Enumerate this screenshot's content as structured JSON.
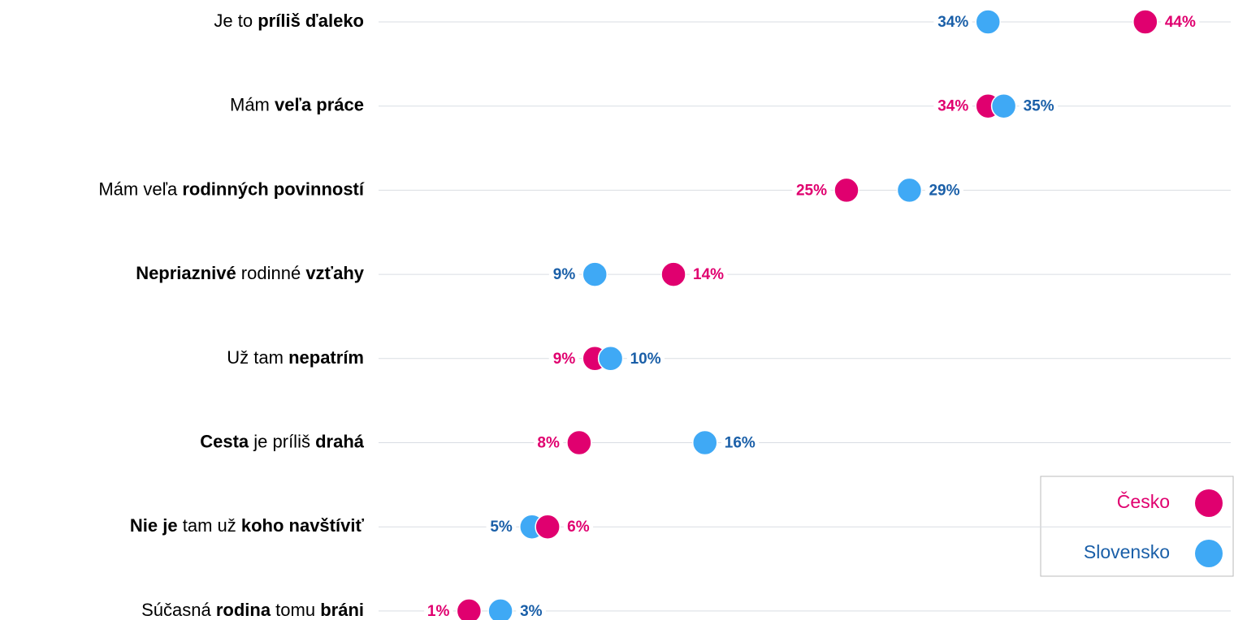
{
  "chart_data": {
    "type": "dot",
    "categories": [
      [
        {
          "text": "Je to ",
          "bold": false
        },
        {
          "text": "príliš ďaleko",
          "bold": true
        }
      ],
      [
        {
          "text": "Mám ",
          "bold": false
        },
        {
          "text": "veľa práce",
          "bold": true
        }
      ],
      [
        {
          "text": "Mám veľa ",
          "bold": false
        },
        {
          "text": "rodinných povinností",
          "bold": true
        }
      ],
      [
        {
          "text": "Nepriaznivé",
          "bold": true
        },
        {
          "text": " rodinné ",
          "bold": false
        },
        {
          "text": "vzťahy",
          "bold": true
        }
      ],
      [
        {
          "text": "Už tam ",
          "bold": false
        },
        {
          "text": "nepatrím",
          "bold": true
        }
      ],
      [
        {
          "text": "Cesta",
          "bold": true
        },
        {
          "text": " je príliš ",
          "bold": false
        },
        {
          "text": "drahá",
          "bold": true
        }
      ],
      [
        {
          "text": "Nie je",
          "bold": true
        },
        {
          "text": " tam už ",
          "bold": false
        },
        {
          "text": "koho navštíviť",
          "bold": true
        }
      ],
      [
        {
          "text": "Súčasná ",
          "bold": false
        },
        {
          "text": "rodina",
          "bold": true
        },
        {
          "text": " tomu ",
          "bold": false
        },
        {
          "text": "bráni",
          "bold": true
        }
      ]
    ],
    "series": [
      {
        "name": "Česko",
        "color": "#e0006f",
        "label_color": "#e0006f",
        "values": [
          44,
          34,
          25,
          14,
          9,
          8,
          6,
          1
        ],
        "value_labels": [
          "44%",
          "34%",
          "25%",
          "14%",
          "9%",
          "8%",
          "6%",
          "1%"
        ]
      },
      {
        "name": "Slovensko",
        "color": "#3fa9f5",
        "label_color": "#1a5fa8",
        "values": [
          34,
          35,
          29,
          9,
          10,
          16,
          5,
          3
        ],
        "value_labels": [
          "34%",
          "35%",
          "29%",
          "9%",
          "10%",
          "16%",
          "5%",
          "3%"
        ]
      }
    ],
    "xlim": [
      0,
      50
    ],
    "legend": "lower right"
  }
}
